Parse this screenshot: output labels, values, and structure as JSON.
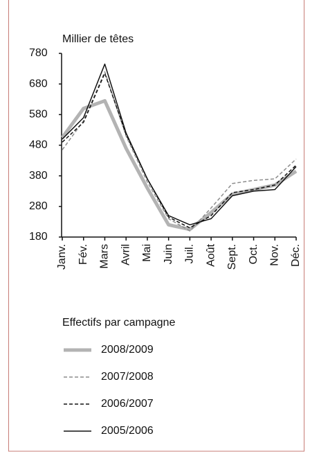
{
  "chart_data": {
    "type": "line",
    "y_label": "Millier de têtes",
    "categories": [
      "Janv.",
      "Fév.",
      "Mars",
      "Avril",
      "Mai",
      "Juin",
      "Juil.",
      "Août",
      "Sept.",
      "Oct.",
      "Nov.",
      "Déc."
    ],
    "ylim": [
      180,
      780
    ],
    "yticks": [
      180,
      280,
      380,
      480,
      580,
      680,
      780
    ],
    "legend_title": "Effectifs par campagne",
    "legend": "bottom",
    "series": [
      {
        "name": "2008/2009",
        "color": "#b3b3b3",
        "style": "solid",
        "width": 5,
        "values": [
          505,
          600,
          625,
          470,
          340,
          220,
          205,
          260,
          320,
          335,
          350,
          395
        ]
      },
      {
        "name": "2007/2008",
        "color": "#8c8c8c",
        "style": "dashed",
        "width": 1.5,
        "values": [
          465,
          560,
          720,
          510,
          360,
          240,
          200,
          275,
          355,
          365,
          370,
          435
        ]
      },
      {
        "name": "2006/2007",
        "color": "#111111",
        "style": "dashed",
        "width": 1.5,
        "values": [
          490,
          555,
          715,
          515,
          370,
          245,
          210,
          250,
          325,
          335,
          350,
          415
        ]
      },
      {
        "name": "2005/2006",
        "color": "#111111",
        "style": "solid",
        "width": 1.5,
        "values": [
          500,
          570,
          745,
          520,
          370,
          250,
          220,
          240,
          315,
          330,
          335,
          410
        ]
      }
    ]
  }
}
